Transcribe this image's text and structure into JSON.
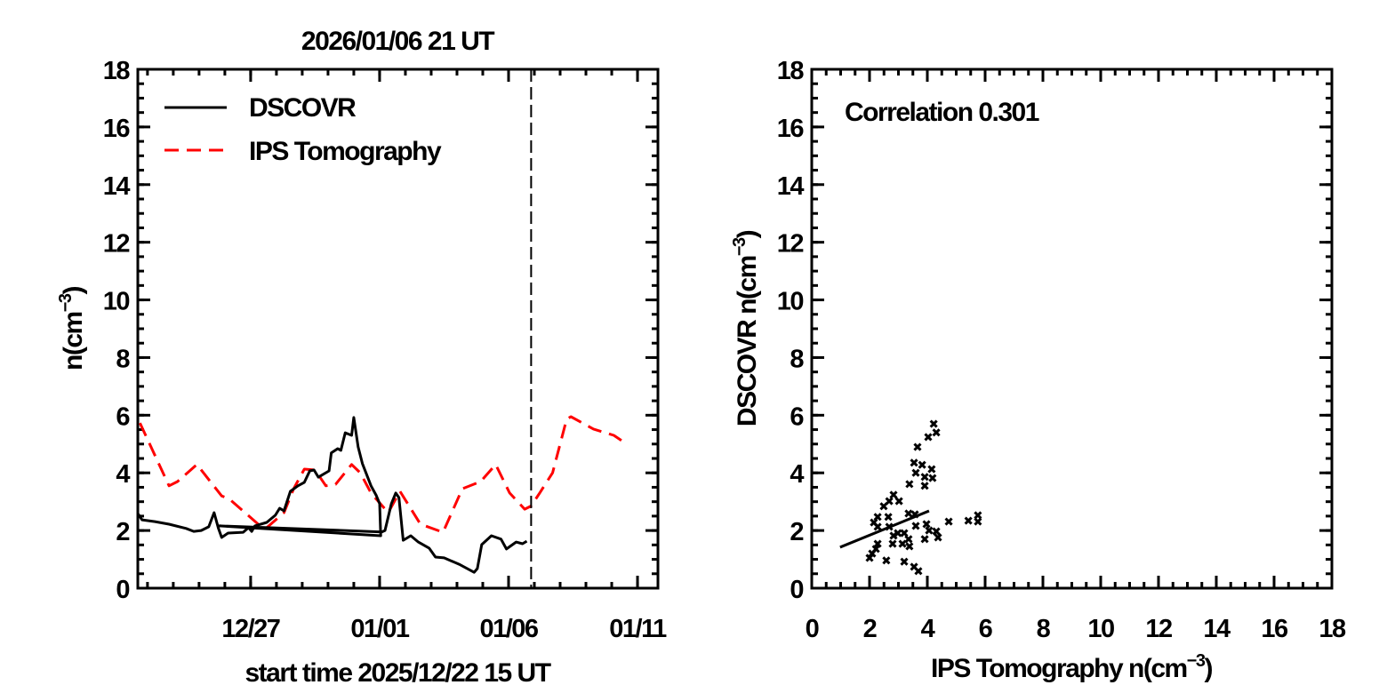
{
  "chart_data": [
    {
      "type": "line",
      "title": "2026/01/06 21 UT",
      "xlabel": "start time 2025/12/22 15 UT",
      "ylabel": "n(cm-3)",
      "ylabel_base": "n",
      "ylabel_unit": "cm",
      "ylabel_exp": "−3",
      "xlim": [
        "2025-12-22 15:00",
        "2026-01-11 19:00"
      ],
      "ylim": [
        0,
        18
      ],
      "yticks": [
        "0",
        "2",
        "4",
        "6",
        "8",
        "10",
        "12",
        "14",
        "16",
        "18"
      ],
      "xticks": [
        {
          "date": "2025-12-27 00:00",
          "label": "12/27"
        },
        {
          "date": "2026-01-01 00:00",
          "label": "01/01"
        },
        {
          "date": "2026-01-06 00:00",
          "label": "01/06"
        },
        {
          "date": "2026-01-11 00:00",
          "label": "01/11"
        }
      ],
      "marker_line": "2026-01-06 21:00",
      "legend": "top-left",
      "series": [
        {
          "name": "DSCOVR",
          "color": "#000000",
          "style": "solid",
          "points": [
            [
              "2025-12-22 15:00",
              2.59
            ],
            [
              "2025-12-22 19:00",
              2.37
            ],
            [
              "2025-12-23 07:00",
              2.31
            ],
            [
              "2025-12-23 20:00",
              2.22
            ],
            [
              "2025-12-24 12:00",
              2.07
            ],
            [
              "2025-12-24 19:00",
              1.97
            ],
            [
              "2025-12-25 02:00",
              2.0
            ],
            [
              "2025-12-25 09:00",
              2.13
            ],
            [
              "2025-12-25 14:00",
              2.62
            ],
            [
              "2025-12-25 18:00",
              2.07
            ],
            [
              "2025-12-25 21:00",
              1.76
            ],
            [
              "2025-12-26 03:00",
              1.91
            ],
            [
              "2025-12-26 17:00",
              1.94
            ],
            [
              "2025-12-26 22:00",
              2.1
            ],
            [
              "2025-12-27 01:00",
              1.97
            ],
            [
              "2025-12-27 04:00",
              2.16
            ],
            [
              "2025-12-27 15:00",
              2.28
            ],
            [
              "2025-12-27 23:00",
              2.53
            ],
            [
              "2025-12-28 03:00",
              2.77
            ],
            [
              "2025-12-28 07:00",
              2.68
            ],
            [
              "2025-12-28 13:00",
              3.36
            ],
            [
              "2025-12-28 20:00",
              3.55
            ],
            [
              "2025-12-29 02:00",
              3.67
            ],
            [
              "2025-12-29 07:00",
              4.07
            ],
            [
              "2025-12-29 11:00",
              4.1
            ],
            [
              "2025-12-29 15:00",
              3.85
            ],
            [
              "2025-12-30 01:00",
              4.07
            ],
            [
              "2025-12-30 03:00",
              4.69
            ],
            [
              "2025-12-30 09:00",
              4.84
            ],
            [
              "2025-12-30 12:00",
              4.78
            ],
            [
              "2025-12-30 16:00",
              5.39
            ],
            [
              "2025-12-30 22:00",
              5.3
            ],
            [
              "2025-12-31 00:00",
              5.92
            ],
            [
              "2025-12-31 04:00",
              4.9
            ],
            [
              "2025-12-31 08:00",
              4.32
            ],
            [
              "2025-12-31 16:00",
              3.55
            ],
            [
              "2025-12-31 21:00",
              3.21
            ],
            [
              "2026-01-01 00:00",
              2.93
            ],
            [
              "2026-01-01 01:00",
              1.82
            ],
            [
              "2025-12-25 19:00",
              2.16
            ],
            [
              "2026-01-01 02:00",
              1.95
            ],
            [
              "2026-01-01 05:00",
              2.0
            ],
            [
              "2026-01-01 11:00",
              2.93
            ],
            [
              "2026-01-01 15:00",
              3.3
            ],
            [
              "2026-01-01 18:00",
              3.14
            ],
            [
              "2026-01-01 22:00",
              1.66
            ],
            [
              "2026-01-02 05:00",
              1.82
            ],
            [
              "2026-01-02 12:00",
              1.6
            ],
            [
              "2026-01-02 22:00",
              1.39
            ],
            [
              "2026-01-03 04:00",
              1.08
            ],
            [
              "2026-01-03 12:00",
              1.05
            ],
            [
              "2026-01-04 02:00",
              0.83
            ],
            [
              "2026-01-04 16:00",
              0.55
            ],
            [
              "2026-01-04 19:00",
              0.68
            ],
            [
              "2026-01-04 23:00",
              1.51
            ],
            [
              "2026-01-05 08:00",
              1.82
            ],
            [
              "2026-01-05 17:00",
              1.7
            ],
            [
              "2026-01-05 22:00",
              1.36
            ],
            [
              "2026-01-06 07:00",
              1.6
            ],
            [
              "2026-01-06 13:00",
              1.54
            ],
            [
              "2026-01-06 17:00",
              1.63
            ]
          ]
        },
        {
          "name": "IPS Tomography",
          "color": "#ff0000",
          "style": "dashed",
          "points": [
            [
              "2025-12-22 17:00",
              5.73
            ],
            [
              "2025-12-23 20:00",
              3.55
            ],
            [
              "2025-12-24 04:00",
              3.7
            ],
            [
              "2025-12-24 22:00",
              4.29
            ],
            [
              "2025-12-25 21:00",
              3.2
            ],
            [
              "2025-12-26 04:00",
              3.1
            ],
            [
              "2025-12-27 07:00",
              2.22
            ],
            [
              "2025-12-27 15:00",
              2.1
            ],
            [
              "2025-12-28 07:00",
              2.62
            ],
            [
              "2025-12-28 16:00",
              3.45
            ],
            [
              "2025-12-29 02:00",
              4.13
            ],
            [
              "2025-12-29 12:00",
              4.1
            ],
            [
              "2025-12-29 22:00",
              3.55
            ],
            [
              "2025-12-30 07:00",
              3.6
            ],
            [
              "2025-12-30 22:00",
              4.29
            ],
            [
              "2025-12-31 06:00",
              4.0
            ],
            [
              "2025-12-31 16:00",
              3.3
            ],
            [
              "2026-01-01 08:00",
              2.62
            ],
            [
              "2026-01-01 19:00",
              3.36
            ],
            [
              "2026-01-02 14:00",
              2.22
            ],
            [
              "2026-01-03 11:00",
              1.94
            ],
            [
              "2026-01-04 05:00",
              3.45
            ],
            [
              "2026-01-04 22:00",
              3.7
            ],
            [
              "2026-01-05 12:00",
              4.29
            ],
            [
              "2026-01-06 01:00",
              3.3
            ],
            [
              "2026-01-06 15:00",
              2.74
            ],
            [
              "2026-01-06 21:00",
              2.85
            ],
            [
              "2026-01-07 05:00",
              3.3
            ],
            [
              "2026-01-07 17:00",
              4.0
            ],
            [
              "2026-01-08 06:00",
              5.86
            ],
            [
              "2026-01-08 10:00",
              5.95
            ],
            [
              "2026-01-09 07:00",
              5.52
            ],
            [
              "2026-01-10 02:00",
              5.3
            ],
            [
              "2026-01-10 12:00",
              5.05
            ]
          ]
        }
      ]
    },
    {
      "type": "scatter",
      "xlabel": "IPS Tomography  n(cm-3)",
      "xlabel_base": "IPS Tomography  n",
      "ylabel": "DSCOVR   n(cm-3)",
      "ylabel_base": "DSCOVR   n",
      "unit": "cm",
      "unit_exp": "−3",
      "annotation": "Correlation 0.301",
      "xlim": [
        0,
        18
      ],
      "ylim": [
        0,
        18
      ],
      "xticks": [
        "0",
        "2",
        "4",
        "6",
        "8",
        "10",
        "12",
        "14",
        "16",
        "18"
      ],
      "yticks": [
        "0",
        "2",
        "4",
        "6",
        "8",
        "10",
        "12",
        "14",
        "16",
        "18"
      ],
      "marker": "x",
      "points": [
        [
          4.22,
          5.7
        ],
        [
          4.31,
          5.4
        ],
        [
          4.03,
          5.24
        ],
        [
          3.66,
          4.9
        ],
        [
          3.54,
          4.35
        ],
        [
          3.82,
          4.28
        ],
        [
          3.6,
          4.0
        ],
        [
          4.15,
          4.13
        ],
        [
          3.91,
          3.86
        ],
        [
          4.18,
          3.82
        ],
        [
          3.38,
          3.61
        ],
        [
          3.91,
          3.55
        ],
        [
          2.83,
          3.24
        ],
        [
          2.68,
          3.02
        ],
        [
          3.02,
          3.02
        ],
        [
          2.49,
          2.84
        ],
        [
          2.28,
          2.47
        ],
        [
          2.65,
          2.47
        ],
        [
          2.15,
          2.28
        ],
        [
          3.35,
          2.59
        ],
        [
          3.57,
          2.56
        ],
        [
          4.74,
          2.31
        ],
        [
          5.42,
          2.34
        ],
        [
          5.75,
          2.53
        ],
        [
          5.75,
          2.31
        ],
        [
          2.28,
          2.13
        ],
        [
          2.68,
          2.13
        ],
        [
          3.6,
          2.16
        ],
        [
          3.97,
          2.22
        ],
        [
          4.06,
          2.0
        ],
        [
          4.31,
          1.97
        ],
        [
          4.37,
          1.76
        ],
        [
          2.98,
          1.91
        ],
        [
          3.2,
          1.91
        ],
        [
          2.83,
          1.82
        ],
        [
          3.35,
          1.7
        ],
        [
          3.91,
          1.7
        ],
        [
          2.8,
          1.54
        ],
        [
          3.14,
          1.54
        ],
        [
          3.38,
          1.45
        ],
        [
          2.28,
          1.54
        ],
        [
          2.22,
          1.36
        ],
        [
          2.09,
          1.2
        ],
        [
          2.0,
          1.05
        ],
        [
          2.58,
          0.96
        ],
        [
          3.2,
          0.92
        ],
        [
          3.54,
          0.74
        ],
        [
          3.69,
          0.59
        ]
      ],
      "fit_line": [
        [
          0.98,
          1.42
        ],
        [
          4.06,
          2.68
        ]
      ]
    }
  ]
}
